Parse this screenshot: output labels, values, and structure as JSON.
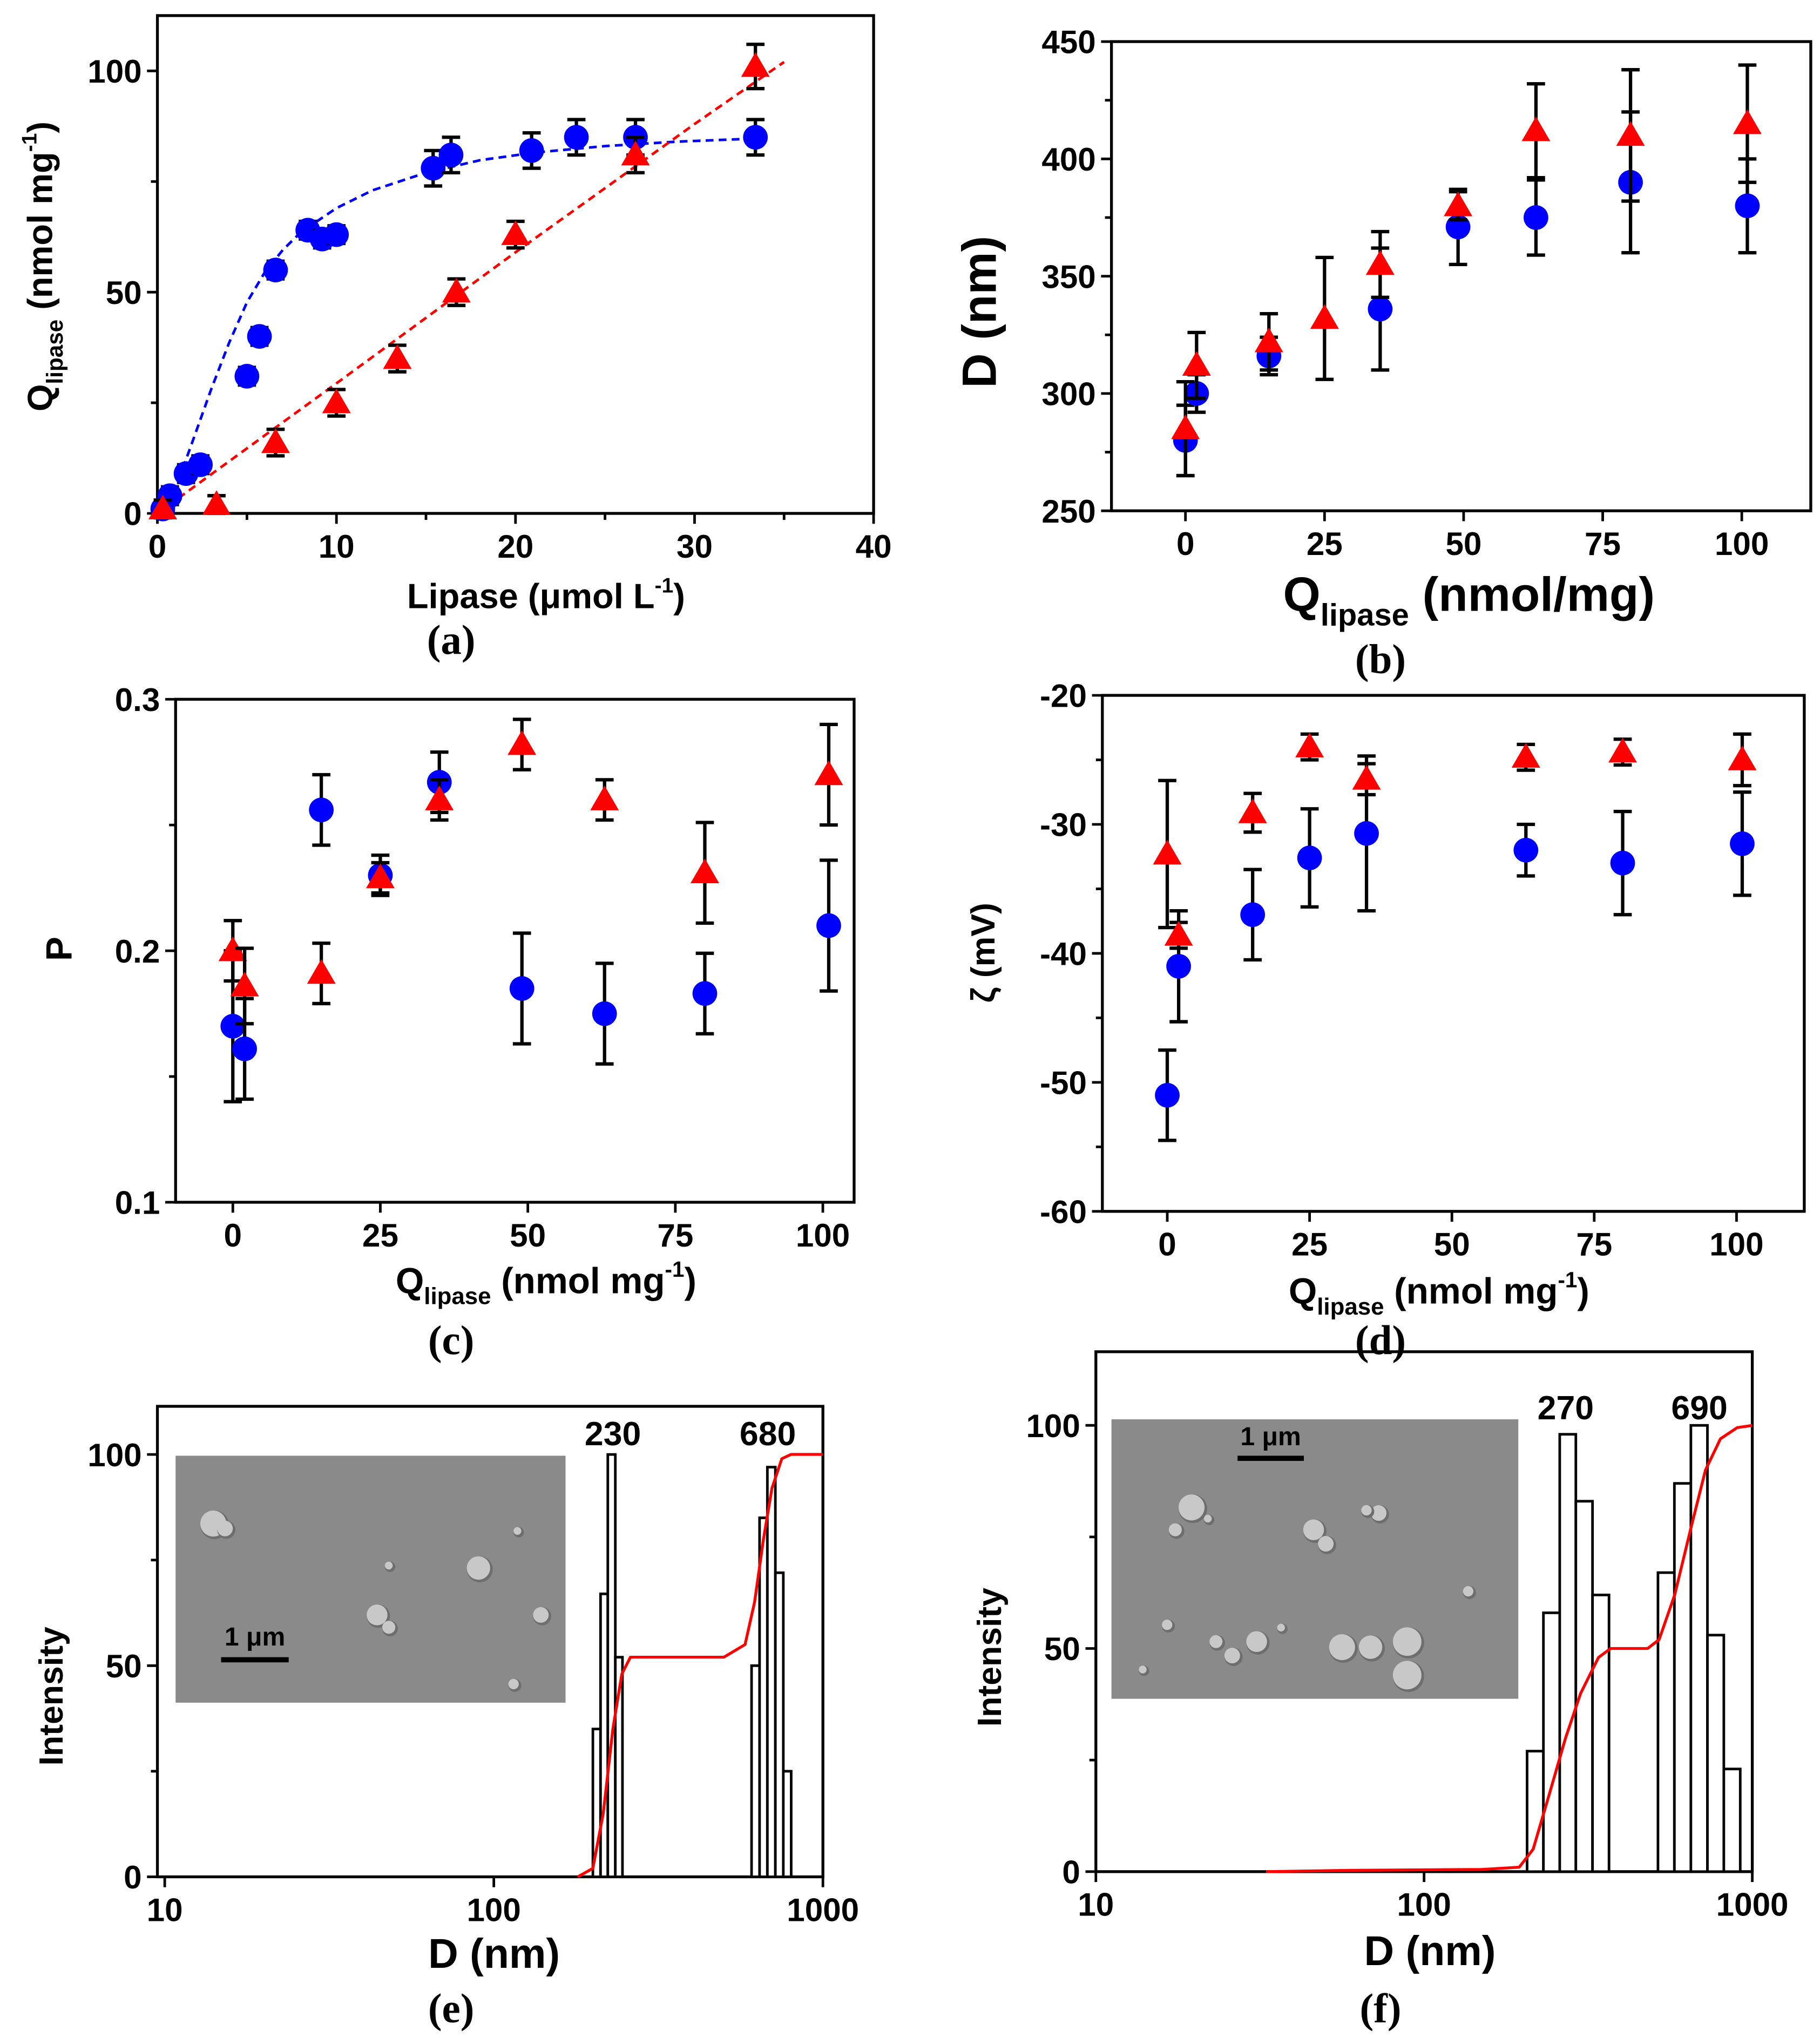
{
  "colors": {
    "blue": "#0000ff",
    "red": "#ff0000",
    "axis": "#000000",
    "sem_bg": "#8a8a8a"
  },
  "chart_data": [
    {
      "id": "a",
      "panel_label": "(a)",
      "type": "scatter",
      "xlabel": [
        {
          "t": "Lipase (μmol L"
        },
        {
          "t": "-1",
          "s": "sup"
        },
        {
          "t": ")"
        }
      ],
      "ylabel": [
        {
          "t": "Q"
        },
        {
          "t": "lipase",
          "s": "sub"
        },
        {
          "t": " (nmol mg"
        },
        {
          "t": "-1",
          "s": "sup"
        },
        {
          "t": ")"
        }
      ],
      "xlim": [
        0,
        40
      ],
      "ylim": [
        0,
        112.5
      ],
      "xticks": [
        0,
        10,
        20,
        30,
        40
      ],
      "xminor": [
        5,
        15,
        25,
        35
      ],
      "yticks": [
        0,
        50,
        100
      ],
      "yminor": [
        25,
        75
      ],
      "series": [
        {
          "name": "blue",
          "marker": "circle",
          "color": "#0000ff",
          "x": [
            0.3,
            0.7,
            1.6,
            2.4,
            5.0,
            5.7,
            6.6,
            8.4,
            9.2,
            10.0,
            15.4,
            16.4,
            20.9,
            23.4,
            26.7,
            33.4
          ],
          "y": [
            1,
            4,
            9,
            11,
            31,
            40,
            55,
            64,
            62,
            63,
            78,
            81,
            82,
            85,
            85,
            85
          ],
          "err": [
            2,
            2,
            2,
            2,
            2,
            2,
            2,
            2,
            2,
            2,
            4,
            4,
            4,
            4,
            4,
            4
          ]
        },
        {
          "name": "red",
          "marker": "triangle",
          "color": "#ff0000",
          "x": [
            0.3,
            3.3,
            6.6,
            10.0,
            13.4,
            16.7,
            20.0,
            26.7,
            33.4
          ],
          "y": [
            1,
            2,
            16,
            25,
            35,
            50,
            63,
            81,
            101
          ],
          "err": [
            2,
            2,
            3,
            3,
            3,
            3,
            3,
            4,
            5
          ]
        }
      ],
      "fits": [
        {
          "color": "#0000ff",
          "x": [
            0,
            1,
            2,
            3,
            4,
            5,
            6,
            7,
            8,
            10,
            12,
            15,
            18,
            21,
            25,
            29,
            33.4
          ],
          "y": [
            0,
            5.5,
            16.7,
            28,
            38.5,
            47.7,
            54.5,
            59.5,
            63.5,
            69,
            73,
            77,
            79.8,
            81.5,
            83,
            84,
            84.7
          ]
        },
        {
          "color": "#ff0000",
          "x": [
            0,
            10,
            20,
            30,
            35
          ],
          "y": [
            0,
            29.4,
            59,
            88,
            102
          ]
        }
      ]
    },
    {
      "id": "b",
      "panel_label": "(b)",
      "type": "scatter",
      "xlabel": [
        {
          "t": "Q"
        },
        {
          "t": "lipase",
          "s": "sub"
        },
        {
          "t": " (nmol/mg)"
        }
      ],
      "ylabel": [
        {
          "t": "D (nm)"
        }
      ],
      "xlim": [
        -13.3,
        112.4
      ],
      "ylim": [
        250,
        450
      ],
      "xticks": [
        0,
        25,
        50,
        75,
        100
      ],
      "xminor": [],
      "yticks": [
        250,
        300,
        350,
        400,
        450
      ],
      "yminor": [
        275,
        325,
        375,
        425
      ],
      "series": [
        {
          "name": "blue",
          "marker": "circle",
          "color": "#0000ff",
          "x": [
            0,
            2,
            15,
            35,
            49,
            63,
            80,
            101
          ],
          "y": [
            280,
            300,
            316,
            336,
            371,
            375,
            390,
            380
          ],
          "err": [
            15,
            8,
            8,
            26,
            16,
            16,
            30,
            20
          ]
        },
        {
          "name": "red",
          "marker": "triangle",
          "color": "#ff0000",
          "x": [
            0,
            2,
            15,
            25,
            35,
            49,
            63,
            80,
            101
          ],
          "y": [
            285,
            312,
            322,
            332,
            355,
            380,
            412,
            410,
            415
          ],
          "err": [
            20,
            14,
            12,
            26,
            14,
            6,
            20,
            28,
            25
          ]
        }
      ]
    },
    {
      "id": "c",
      "panel_label": "(c)",
      "type": "scatter",
      "xlabel": [
        {
          "t": "Q"
        },
        {
          "t": "lipase",
          "s": "sub"
        },
        {
          "t": " (nmol mg"
        },
        {
          "t": "-1",
          "s": "sup"
        },
        {
          "t": ")"
        }
      ],
      "ylabel": [
        {
          "t": "P"
        }
      ],
      "xlim": [
        -9.7,
        105.3
      ],
      "ylim": [
        0.1,
        0.3
      ],
      "xticks": [
        0,
        25,
        50,
        75,
        100
      ],
      "xminor": [],
      "yticks": [
        0.1,
        0.2,
        0.3
      ],
      "yminor": [
        0.15,
        0.25
      ],
      "series": [
        {
          "name": "blue",
          "marker": "circle",
          "color": "#0000ff",
          "x": [
            0,
            2,
            15,
            25,
            35,
            49,
            63,
            80,
            101
          ],
          "y": [
            0.17,
            0.161,
            0.256,
            0.23,
            0.267,
            0.185,
            0.175,
            0.183,
            0.21
          ],
          "err": [
            0.03,
            0.02,
            0.014,
            0.008,
            0.012,
            0.022,
            0.02,
            0.016,
            0.026
          ]
        },
        {
          "name": "red",
          "marker": "triangle",
          "color": "#ff0000",
          "x": [
            0,
            2,
            15,
            25,
            35,
            49,
            63,
            80,
            101
          ],
          "y": [
            0.2,
            0.186,
            0.191,
            0.229,
            0.26,
            0.282,
            0.26,
            0.231,
            0.27
          ],
          "err": [
            0.012,
            0.015,
            0.012,
            0.006,
            0.008,
            0.01,
            0.008,
            0.02,
            0.02
          ]
        }
      ]
    },
    {
      "id": "d",
      "panel_label": "(d)",
      "type": "scatter",
      "xlabel": [
        {
          "t": "Q"
        },
        {
          "t": "lipase",
          "s": "sub"
        },
        {
          "t": " (nmol mg"
        },
        {
          "t": "-1",
          "s": "sup"
        },
        {
          "t": ")"
        }
      ],
      "ylabel": [
        {
          "t": "ζ (mV)"
        }
      ],
      "xlim": [
        -11.4,
        111.9
      ],
      "ylim": [
        -60,
        -20
      ],
      "xticks": [
        0,
        25,
        50,
        75,
        100
      ],
      "xminor": [],
      "yticks": [
        -60,
        -50,
        -40,
        -30,
        -20
      ],
      "yminor": [
        -55,
        -45,
        -35,
        -25
      ],
      "series": [
        {
          "name": "blue",
          "marker": "circle",
          "color": "#0000ff",
          "x": [
            0,
            2,
            15,
            25,
            35,
            63,
            80,
            101
          ],
          "y": [
            -51,
            -41,
            -37,
            -32.6,
            -30.7,
            -32,
            -33,
            -31.5
          ],
          "err": [
            3.5,
            4.3,
            3.5,
            3.8,
            6,
            2,
            4,
            4
          ]
        },
        {
          "name": "red",
          "marker": "triangle",
          "color": "#ff0000",
          "x": [
            0,
            2,
            15,
            25,
            35,
            63,
            80,
            101
          ],
          "y": [
            -32.3,
            -38.6,
            -29.1,
            -24,
            -26.5,
            -24.8,
            -24.4,
            -25
          ],
          "err": [
            5.7,
            1,
            1.5,
            1,
            1.2,
            1,
            1,
            2
          ]
        }
      ]
    },
    {
      "id": "e",
      "panel_label": "(e)",
      "type": "bar",
      "xlabel": [
        {
          "t": "D (nm)"
        }
      ],
      "ylabel": [
        {
          "t": "Intensity"
        }
      ],
      "xscale": "log",
      "xlim": [
        9.5,
        1000
      ],
      "ylim": [
        0,
        111.4
      ],
      "xticks": [
        10,
        100,
        1000
      ],
      "yticks": [
        0,
        50,
        100
      ],
      "yminor": [
        25,
        75
      ],
      "bars": [
        {
          "x0": 200,
          "x1": 211,
          "h": 35
        },
        {
          "x0": 211,
          "x1": 222,
          "h": 67
        },
        {
          "x0": 222,
          "x1": 234,
          "h": 100
        },
        {
          "x0": 234,
          "x1": 246,
          "h": 52
        },
        {
          "x0": 607,
          "x1": 642,
          "h": 50
        },
        {
          "x0": 642,
          "x1": 678,
          "h": 85
        },
        {
          "x0": 678,
          "x1": 717,
          "h": 97
        },
        {
          "x0": 717,
          "x1": 758,
          "h": 72
        },
        {
          "x0": 758,
          "x1": 801,
          "h": 25
        }
      ],
      "cumulative": {
        "x": [
          180,
          200,
          215,
          230,
          245,
          260,
          300,
          500,
          580,
          620,
          660,
          700,
          750,
          800,
          1000
        ],
        "y": [
          0,
          2,
          15,
          35,
          48,
          52,
          52,
          52,
          55,
          65,
          80,
          92,
          99,
          100,
          100
        ]
      },
      "peak_labels": [
        {
          "text": "230",
          "x": 230
        },
        {
          "text": "680",
          "x": 680
        }
      ],
      "inset_scale_bar": "1 μm"
    },
    {
      "id": "f",
      "panel_label": "(f)",
      "type": "bar",
      "xlabel": [
        {
          "t": "D (nm)"
        }
      ],
      "ylabel": [
        {
          "t": "Intensity"
        }
      ],
      "xscale": "log",
      "xlim": [
        10,
        1000
      ],
      "ylim": [
        0,
        116.5
      ],
      "xticks": [
        10,
        100,
        1000
      ],
      "yticks": [
        0,
        50,
        100
      ],
      "yminor": [
        25,
        75
      ],
      "bars": [
        {
          "x0": 206,
          "x1": 231,
          "h": 27
        },
        {
          "x0": 231,
          "x1": 259,
          "h": 58
        },
        {
          "x0": 259,
          "x1": 290,
          "h": 98
        },
        {
          "x0": 290,
          "x1": 326,
          "h": 83
        },
        {
          "x0": 326,
          "x1": 366,
          "h": 62
        },
        {
          "x0": 516,
          "x1": 579,
          "h": 67
        },
        {
          "x0": 579,
          "x1": 650,
          "h": 87
        },
        {
          "x0": 650,
          "x1": 730,
          "h": 100
        },
        {
          "x0": 730,
          "x1": 819,
          "h": 53
        },
        {
          "x0": 819,
          "x1": 919,
          "h": 23
        }
      ],
      "cumulative": {
        "x": [
          33,
          60,
          150,
          195,
          215,
          240,
          270,
          300,
          340,
          370,
          400,
          480,
          520,
          580,
          650,
          720,
          800,
          900,
          1000
        ],
        "y": [
          0,
          0.3,
          0.5,
          1,
          5,
          17,
          30,
          40,
          48,
          50,
          50,
          50,
          52,
          62,
          77,
          90,
          97,
          99.5,
          100
        ]
      },
      "peak_labels": [
        {
          "text": "270",
          "x": 270
        },
        {
          "text": "690",
          "x": 690
        }
      ],
      "inset_scale_bar": "1 μm"
    }
  ]
}
